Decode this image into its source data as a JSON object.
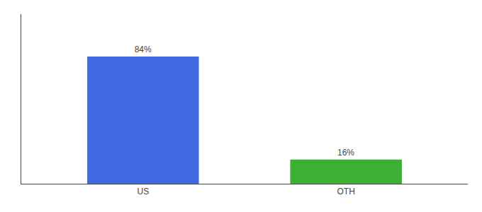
{
  "chart_data": {
    "type": "bar",
    "categories": [
      "US",
      "OTH"
    ],
    "values": [
      84,
      16
    ],
    "value_labels": [
      "84%",
      "16%"
    ],
    "colors": [
      "#4169e1",
      "#3cb034"
    ],
    "ylim": [
      0,
      112
    ],
    "data_labels": true,
    "tick_labels": "x",
    "grid": false
  }
}
